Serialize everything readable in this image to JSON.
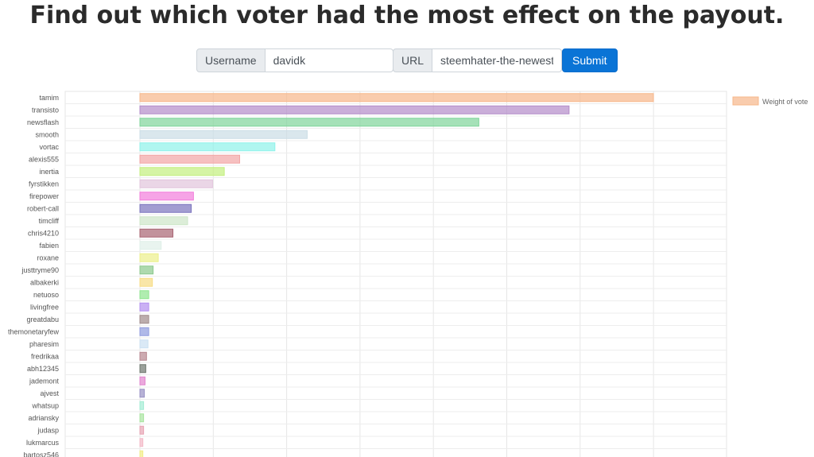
{
  "page": {
    "title": "Find out which voter had the most effect on the payout."
  },
  "form": {
    "username_label": "Username",
    "username_value": "davidk",
    "url_label": "URL",
    "url_value": "steemhater-the-newest-s",
    "submit_label": "Submit"
  },
  "chart_data": {
    "type": "bar",
    "orientation": "horizontal",
    "grid": true,
    "legend": {
      "position": "right",
      "label": "Weight of vote"
    },
    "categories": [
      "tamim",
      "transisto",
      "newsflash",
      "smooth",
      "vortac",
      "alexis555",
      "inertia",
      "fyrstikken",
      "firepower",
      "robert-call",
      "timcliff",
      "chris4210",
      "fabien",
      "roxane",
      "justtryme90",
      "albakerki",
      "netuoso",
      "livingfree",
      "greatdabu",
      "themonetaryfew",
      "pharesim",
      "fredrikaa",
      "abh12345",
      "jademont",
      "ajvest",
      "whatsup",
      "adriansky",
      "judasp",
      "lukmarcus",
      "bartosz546"
    ],
    "values": [
      700,
      585,
      462,
      228,
      184,
      136,
      115,
      99,
      73,
      70,
      65,
      45,
      29,
      25,
      18,
      17,
      12,
      12,
      12,
      12,
      11,
      9,
      8,
      7,
      6,
      5,
      5,
      5,
      4,
      4
    ],
    "colors": [
      "#f7b78a",
      "#b38bc9",
      "#7fd49a",
      "#cbdde6",
      "#8ff2ea",
      "#f2a5a5",
      "#c3ef7e",
      "#e1c4dc",
      "#f27ddb",
      "#7b74bd",
      "#cde6c7",
      "#a86472",
      "#dff0e8",
      "#ecf08a",
      "#8cc98d",
      "#f7dc83",
      "#8ee58e",
      "#b38ff0",
      "#9f8a8a",
      "#8f9bde",
      "#cbe0f2",
      "#b7868f",
      "#6f786f",
      "#e285cf",
      "#9891c4",
      "#a3ecd4",
      "#a8e49f",
      "#e7a4b4",
      "#f3b9c7",
      "#f2ec86"
    ]
  }
}
